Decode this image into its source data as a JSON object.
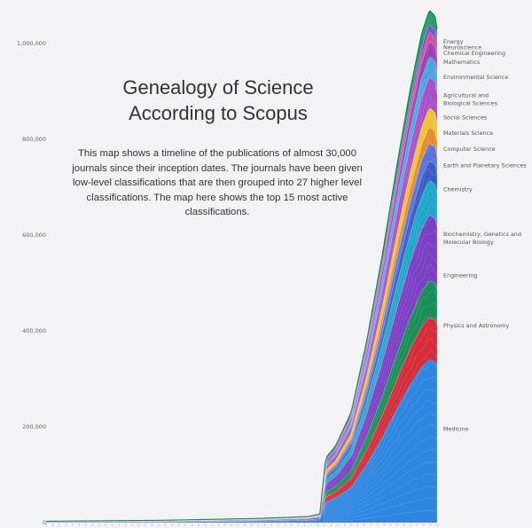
{
  "title_lines": [
    "Genealogy of Science",
    "According to Scopus"
  ],
  "description": "This map shows a timeline of the publications of almost 30,000 journals since their inception dates. The journals have been given low-level classifications that are then grouped into 27 higher level classifications. The map here shows the top 15 most active classifications.",
  "chart_data": {
    "type": "area",
    "stacked": true,
    "title": "Genealogy of Science According to Scopus",
    "ylim": [
      0,
      1080000
    ],
    "y_ticks": [
      {
        "value": 0,
        "label": "0"
      },
      {
        "value": 200000,
        "label": "200,000"
      },
      {
        "value": 400000,
        "label": "400,000"
      },
      {
        "value": 600000,
        "label": "600,000"
      },
      {
        "value": 800000,
        "label": "800,000"
      },
      {
        "value": 1000000,
        "label": "1,000,000"
      }
    ],
    "x_range": [
      0,
      1
    ],
    "totals_curve": [
      [
        0.0,
        3000
      ],
      [
        0.3,
        5000
      ],
      [
        0.55,
        9000
      ],
      [
        0.67,
        13000
      ],
      [
        0.7,
        18000
      ],
      [
        0.715,
        135000
      ],
      [
        0.74,
        160000
      ],
      [
        0.78,
        230000
      ],
      [
        0.82,
        380000
      ],
      [
        0.86,
        560000
      ],
      [
        0.9,
        760000
      ],
      [
        0.93,
        900000
      ],
      [
        0.96,
        1020000
      ],
      [
        0.98,
        1070000
      ],
      [
        0.995,
        1058000
      ],
      [
        1.0,
        1030000
      ]
    ],
    "series": [
      {
        "name": "Medicine",
        "color": "#2f86e0",
        "share": 0.318
      },
      {
        "name": "Physics and Astronomy",
        "color": "#d62d3a",
        "share": 0.082
      },
      {
        "name": "Engineering",
        "color": "#1a8f5a",
        "share": 0.072
      },
      {
        "name": "Biochemistry, Genetics and Molecular Biology",
        "color": "#7b3fc4",
        "share": 0.128
      },
      {
        "name": "Chemistry",
        "color": "#1fa7c9",
        "share": 0.068
      },
      {
        "name": "Earth and Planetary Sciences",
        "color": "#3b5cc7",
        "share": 0.038
      },
      {
        "name": "Computer Science",
        "color": "#5a73d9",
        "share": 0.034
      },
      {
        "name": "Materials Science",
        "color": "#e58e2a",
        "share": 0.032
      },
      {
        "name": "Social Sciences",
        "color": "#f0c13b",
        "share": 0.038
      },
      {
        "name": "Agricultural and Biological Sciences",
        "color": "#a84fc9",
        "share": 0.06
      },
      {
        "name": "Environmental Science",
        "color": "#4aa7de",
        "share": 0.04
      },
      {
        "name": "Mathematics",
        "color": "#9a3fb8",
        "share": 0.03
      },
      {
        "name": "Chemical Engineering",
        "color": "#d94a9a",
        "share": 0.018
      },
      {
        "name": "Neuroscience",
        "color": "#6c4fd1",
        "share": 0.014
      },
      {
        "name": "Energy",
        "color": "#2a9d6a",
        "share": 0.028
      }
    ],
    "legend_labels": [
      {
        "lines": [
          "Energy"
        ],
        "value": 1000000
      },
      {
        "lines": [
          "Neuroscience"
        ],
        "value": 988000
      },
      {
        "lines": [
          "Chemical Engineering"
        ],
        "value": 976000
      },
      {
        "lines": [
          "Mathematics"
        ],
        "value": 958000
      },
      {
        "lines": [
          "Environmental Science"
        ],
        "value": 926000
      },
      {
        "lines": [
          "Agricultural and",
          "Biological Sciences"
        ],
        "value": 888000
      },
      {
        "lines": [
          "Social Sciences"
        ],
        "value": 842000
      },
      {
        "lines": [
          "Materials Science"
        ],
        "value": 810000
      },
      {
        "lines": [
          "Computer Science"
        ],
        "value": 776000
      },
      {
        "lines": [
          "Earth and Planetary Sciences"
        ],
        "value": 742000
      },
      {
        "lines": [
          "Chemistry"
        ],
        "value": 692000
      },
      {
        "lines": [
          "Biochemistry, Genetics and",
          "Molecular Biology"
        ],
        "value": 598000
      },
      {
        "lines": [
          "Engineering"
        ],
        "value": 512000
      },
      {
        "lines": [
          "Physics and Astronomy"
        ],
        "value": 408000
      },
      {
        "lines": [
          "Medicine"
        ],
        "value": 192000
      }
    ]
  }
}
